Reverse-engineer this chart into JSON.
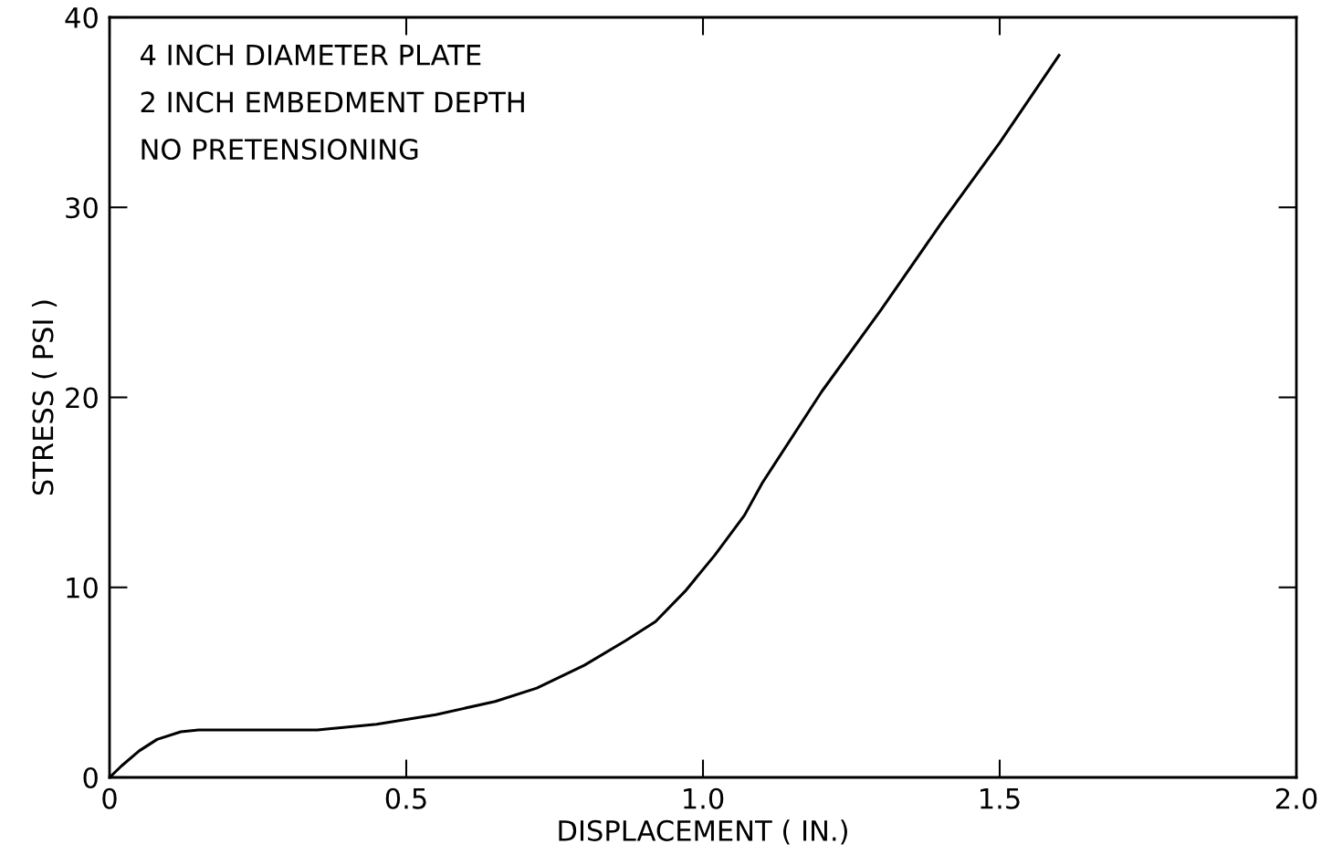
{
  "chart_data": {
    "type": "line",
    "xlabel": "DISPLACEMENT ( IN.)",
    "ylabel": "STRESS ( PSI )",
    "annotations": [
      "4 INCH DIAMETER PLATE",
      "2 INCH EMBEDMENT DEPTH",
      "NO PRETENSIONING"
    ],
    "series": [
      {
        "color": "#000000",
        "x": [
          0,
          0.02,
          0.05,
          0.08,
          0.12,
          0.15,
          0.25,
          0.35,
          0.45,
          0.55,
          0.65,
          0.72,
          0.8,
          0.87,
          0.92,
          0.97,
          1.02,
          1.07,
          1.1,
          1.2,
          1.3,
          1.4,
          1.5,
          1.6
        ],
        "values": [
          0,
          0.6,
          1.4,
          2.0,
          2.4,
          2.5,
          2.5,
          2.5,
          2.8,
          3.3,
          4.0,
          4.7,
          5.9,
          7.2,
          8.2,
          9.8,
          11.7,
          13.8,
          15.5,
          20.3,
          24.6,
          29.1,
          33.4,
          38
        ]
      }
    ],
    "xlim": [
      0,
      2
    ],
    "ylim": [
      0,
      40
    ],
    "xticks": [
      0,
      {
        "value": 0.5,
        "label": "0.5"
      },
      {
        "value": 1,
        "label": "1.0"
      },
      {
        "value": 1.5,
        "label": "1.5"
      },
      {
        "value": 2,
        "label": "2.0"
      }
    ],
    "yticks": [
      0,
      10,
      20,
      30,
      40
    ],
    "grid": false,
    "legend": false,
    "marker": "none",
    "line_style": "solid"
  }
}
